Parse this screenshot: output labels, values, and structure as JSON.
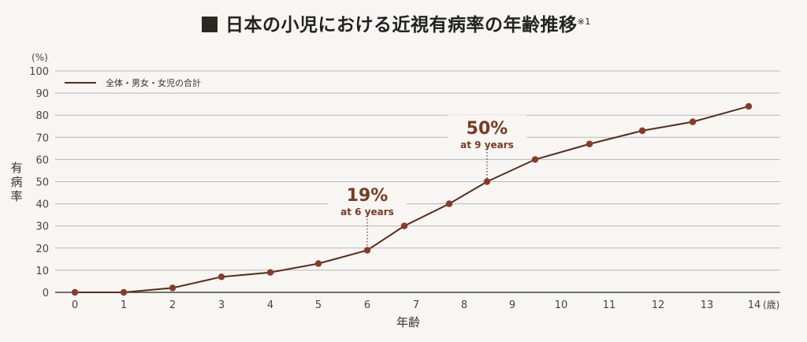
{
  "title": {
    "text": "日本の小児における近視有病率の年齢推移",
    "footnote_mark": "※1"
  },
  "axes": {
    "y_unit": "(%)",
    "y_label": "有病率",
    "x_label": "年齢",
    "x_unit": "(歳)"
  },
  "legend": {
    "label": "全体・男女・女児の合計"
  },
  "annotations": [
    {
      "value": "19%",
      "sub": "at 6 years"
    },
    {
      "value": "50%",
      "sub": "at 9 years"
    }
  ],
  "colors": {
    "line": "#5a2a1e",
    "marker": "#8b3a26",
    "annotation": "#7a3a22",
    "grid": "#b8b8b8"
  },
  "chart_data": {
    "type": "line",
    "title": "日本の小児における近視有病率の年齢推移",
    "xlabel": "年齢 (歳)",
    "ylabel": "有病率 (%)",
    "ylim": [
      0,
      100
    ],
    "yticks": [
      0,
      10,
      20,
      30,
      40,
      50,
      60,
      70,
      80,
      90,
      100
    ],
    "xticks": [
      0,
      1,
      2,
      3,
      4,
      5,
      6,
      7,
      8,
      9,
      10,
      11,
      12,
      13,
      14
    ],
    "grid": true,
    "legend_position": "top-left",
    "series": [
      {
        "name": "全体・男女・女児の合計",
        "x": [
          0,
          1,
          2,
          3,
          4,
          5,
          6,
          7,
          8,
          9,
          10,
          11,
          12,
          13,
          14
        ],
        "values": [
          0,
          0,
          2,
          7,
          9,
          13,
          19,
          30,
          40,
          50,
          60,
          67,
          73,
          77,
          84
        ]
      }
    ],
    "annotations": [
      {
        "x": 6,
        "y": 19,
        "text": "19% at 6 years"
      },
      {
        "x": 9,
        "y": 50,
        "text": "50% at 9 years"
      }
    ]
  }
}
